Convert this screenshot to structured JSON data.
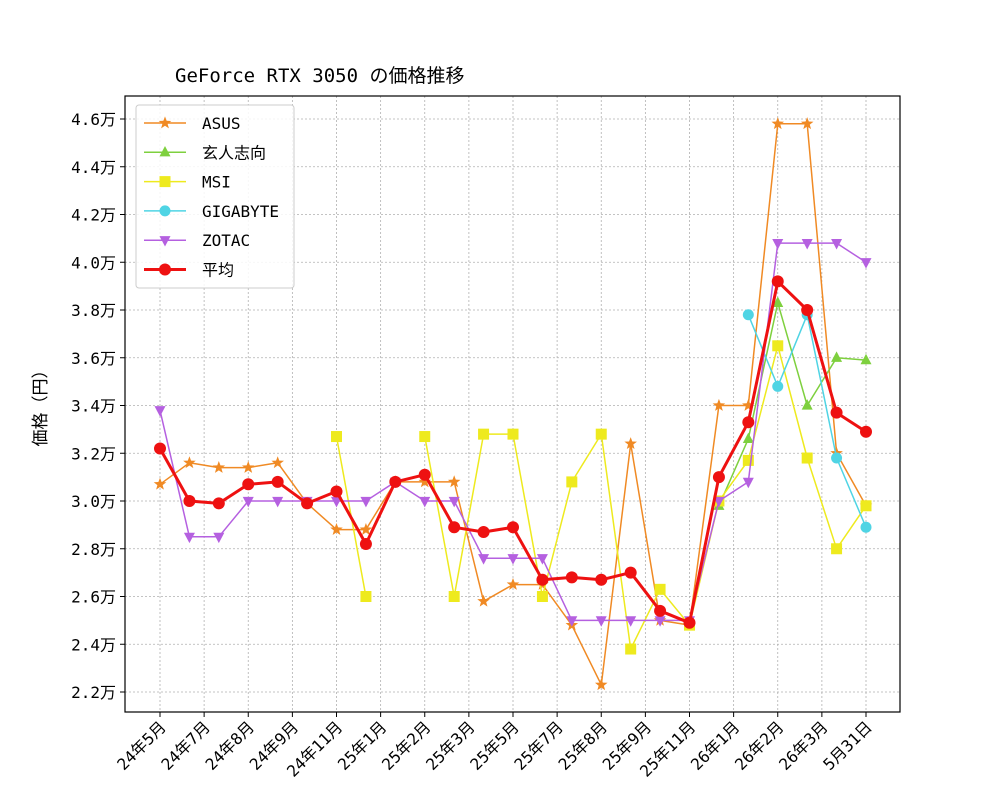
{
  "chart_data": {
    "type": "line",
    "title": "GeForce RTX 3050 の価格推移",
    "xlabel": "",
    "ylabel": "価格（円）",
    "ylim": [
      21300,
      47200
    ],
    "grid": true,
    "legend_position": "upper-left",
    "x_tick_labels": [
      "24年5月",
      "24年7月",
      "24年8月",
      "24年9月",
      "24年11月",
      "25年1月",
      "25年2月",
      "25年3月",
      "25年5月",
      "25年7月",
      "25年8月",
      "25年9月",
      "25年11月",
      "26年1月",
      "26年2月",
      "26年3月",
      "5月31日"
    ],
    "y_ticks": [
      22000,
      24000,
      26000,
      28000,
      30000,
      32000,
      34000,
      36000,
      38000,
      40000,
      42000,
      44000,
      46000
    ],
    "y_tick_labels": [
      "2.2万",
      "2.4万",
      "2.6万",
      "2.8万",
      "3.0万",
      "3.2万",
      "3.4万",
      "3.6万",
      "3.8万",
      "4.0万",
      "4.2万",
      "4.4万",
      "4.6万"
    ],
    "x_positions": [
      0,
      0.667,
      1.333,
      2,
      2.667,
      3.333,
      4,
      4.667,
      5.333,
      6,
      6.667,
      7.333,
      8,
      8.667,
      9.333,
      10,
      10.667,
      11.333,
      12,
      12.667,
      13.333,
      14,
      14.667,
      15.333,
      16
    ],
    "series": [
      {
        "name": "ASUS",
        "color": "#f08a24",
        "marker": "star",
        "linewidth": 1.5,
        "values": [
          30700,
          31600,
          31400,
          31400,
          31600,
          29900,
          28800,
          28800,
          30800,
          30800,
          30800,
          25800,
          26500,
          26500,
          24800,
          22300,
          32400,
          25000,
          24800,
          34000,
          34000,
          45800,
          45800,
          32000,
          29800
        ]
      },
      {
        "name": "玄人志向",
        "color": "#7ed03e",
        "marker": "triangle-up",
        "linewidth": 1.5,
        "values": [
          null,
          null,
          null,
          null,
          null,
          null,
          null,
          null,
          null,
          null,
          null,
          null,
          null,
          null,
          null,
          null,
          null,
          null,
          null,
          29800,
          32600,
          38300,
          34000,
          36000,
          35900
        ]
      },
      {
        "name": "MSI",
        "color": "#eeea1e",
        "marker": "square",
        "linewidth": 1.5,
        "values": [
          null,
          null,
          null,
          null,
          null,
          null,
          32700,
          26000,
          null,
          32700,
          26000,
          32800,
          32800,
          26000,
          30800,
          32800,
          23800,
          26300,
          24800,
          30000,
          31700,
          36500,
          31800,
          28000,
          29800
        ]
      },
      {
        "name": "GIGABYTE",
        "color": "#4fd4e4",
        "marker": "circle",
        "linewidth": 1.5,
        "values": [
          null,
          null,
          null,
          null,
          null,
          null,
          null,
          null,
          null,
          null,
          null,
          null,
          null,
          null,
          null,
          null,
          null,
          null,
          null,
          null,
          37800,
          34800,
          37800,
          31800,
          28900
        ]
      },
      {
        "name": "ZOTAC",
        "color": "#b560e0",
        "marker": "triangle-down",
        "linewidth": 1.5,
        "values": [
          33800,
          28500,
          28500,
          30000,
          30000,
          30000,
          30000,
          30000,
          30800,
          30000,
          30000,
          27600,
          27600,
          27600,
          25000,
          25000,
          25000,
          25000,
          25000,
          30000,
          30800,
          40800,
          40800,
          40800,
          40000
        ]
      },
      {
        "name": "平均",
        "color": "#ee1111",
        "marker": "circle",
        "linewidth": 3,
        "values": [
          32200,
          30000,
          29900,
          30700,
          30800,
          29900,
          30400,
          28200,
          30800,
          31100,
          28900,
          28700,
          28900,
          26700,
          26800,
          26700,
          27000,
          25400,
          24900,
          31000,
          33300,
          39200,
          38000,
          33700,
          32900
        ]
      }
    ]
  }
}
